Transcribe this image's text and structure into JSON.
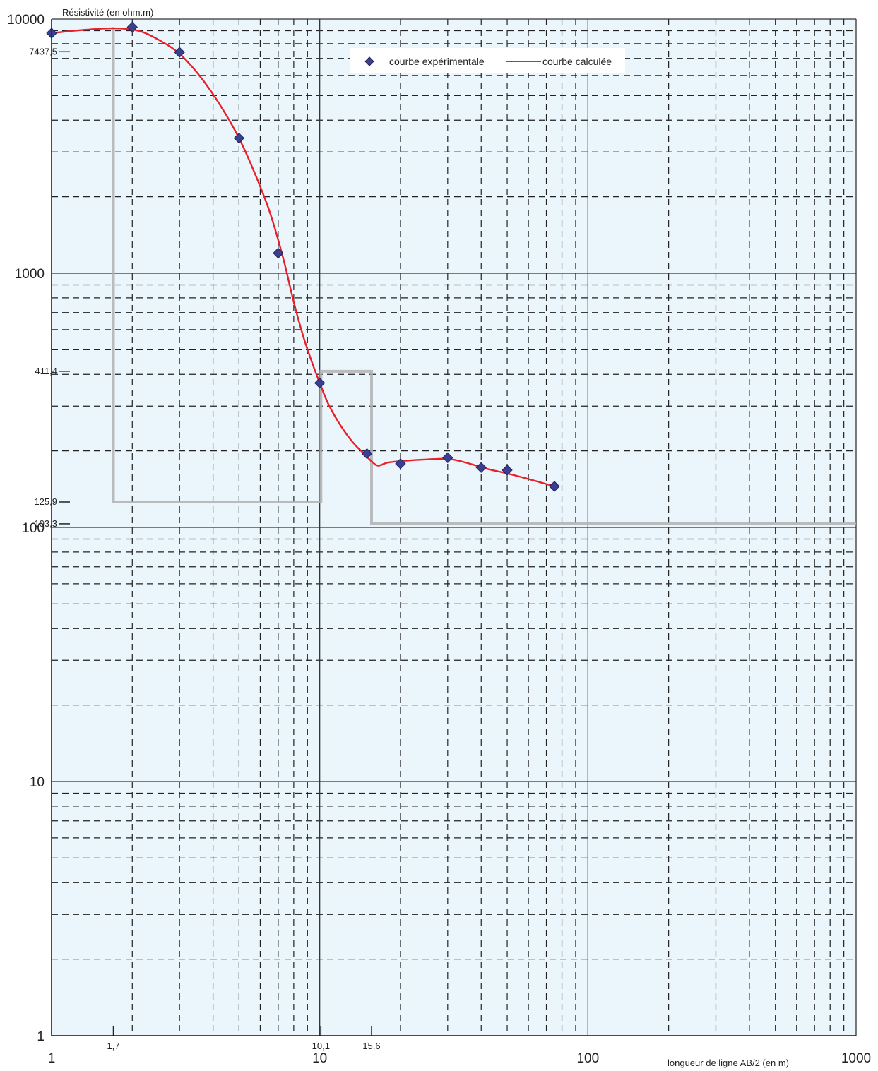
{
  "chart_data": {
    "type": "line",
    "ylabel": "Résistivité (en ohm.m)",
    "xlabel": "longueur de ligne AB/2 (en m)",
    "x_scale": "log",
    "y_scale": "log",
    "xlim": [
      1,
      1000
    ],
    "ylim": [
      1,
      10000
    ],
    "grid": true,
    "x_major_ticks": [
      {
        "value": 1,
        "label": "1"
      },
      {
        "value": 10,
        "label": "10"
      },
      {
        "value": 100,
        "label": "100"
      },
      {
        "value": 1000,
        "label": "1000"
      }
    ],
    "y_major_ticks": [
      {
        "value": 1,
        "label": "1"
      },
      {
        "value": 10,
        "label": "10"
      },
      {
        "value": 100,
        "label": "100"
      },
      {
        "value": 1000,
        "label": "1000"
      },
      {
        "value": 10000,
        "label": "10000"
      }
    ],
    "x_marker_ticks": [
      {
        "value": 1.7,
        "label": "1,7"
      },
      {
        "value": 10.1,
        "label": "10,1"
      },
      {
        "value": 15.6,
        "label": "15,6"
      }
    ],
    "y_marker_ticks": [
      {
        "value": 7437.5,
        "label": "7437,5"
      },
      {
        "value": 411.4,
        "label": "411,4"
      },
      {
        "value": 125.9,
        "label": "125,9"
      },
      {
        "value": 103.3,
        "label": "103,3"
      }
    ],
    "legend": {
      "position": "top-center",
      "entries": [
        {
          "name": "courbe expérimentale",
          "color": "#3a3f8f",
          "marker": "diamond"
        },
        {
          "name": "courbe calculée",
          "color": "#e8202a",
          "marker": "line"
        }
      ]
    },
    "series": [
      {
        "name": "courbe expérimentale",
        "color": "#3a3f8f",
        "marker": "diamond",
        "x": [
          1,
          2,
          3,
          5,
          7,
          10,
          15,
          20,
          30,
          40,
          50,
          75
        ],
        "y": [
          8800,
          9300,
          7400,
          3400,
          1200,
          370,
          195,
          178,
          188,
          172,
          168,
          145
        ]
      },
      {
        "name": "courbe calculée",
        "color": "#e8202a",
        "marker": "none",
        "x": [
          1,
          1.3,
          1.7,
          2.1,
          2.5,
          3,
          3.6,
          4.3,
          5,
          5.7,
          6.5,
          7.3,
          8,
          8.7,
          9.4,
          10,
          10.7,
          11.6,
          12.5,
          13.5,
          14.7,
          15.6,
          16.5,
          18,
          21,
          25,
          30,
          35,
          42,
          50,
          60,
          75
        ],
        "y": [
          8800,
          9050,
          9200,
          9000,
          8300,
          7300,
          5900,
          4500,
          3400,
          2500,
          1750,
          1150,
          770,
          560,
          440,
          370,
          310,
          265,
          235,
          212,
          194,
          182,
          175,
          180,
          183,
          185,
          186,
          180,
          170,
          163,
          155,
          145
        ]
      },
      {
        "name": "",
        "color": "#b0b0b0",
        "marker": "step",
        "x": [
          1.7,
          1.7,
          10.1,
          10.1,
          15.6,
          15.6,
          1000
        ],
        "y": [
          9300,
          125.9,
          125.9,
          411.4,
          411.4,
          103.3,
          103.3
        ]
      }
    ]
  }
}
